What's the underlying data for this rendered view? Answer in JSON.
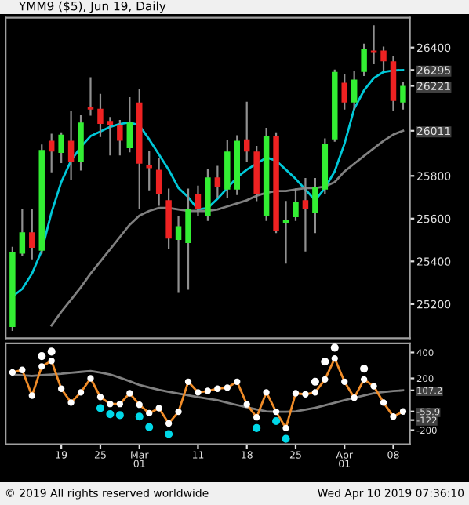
{
  "chart_data": [
    {
      "type": "candlestick",
      "title": "YMM9 ($5), Jun 19, Daily",
      "categories": [
        null,
        null,
        null,
        null,
        null,
        null,
        null,
        null,
        null,
        null,
        null,
        null,
        null,
        null,
        null,
        null,
        null,
        null,
        null,
        null,
        null,
        null,
        null,
        null,
        null,
        null,
        null,
        null,
        null,
        null,
        null,
        null,
        null,
        null,
        null,
        null,
        null,
        null,
        null,
        null,
        null
      ],
      "ohlc": [
        [
          25093,
          25464,
          25079,
          25443
        ],
        [
          25436,
          25643,
          25429,
          25536
        ],
        [
          25536,
          25643,
          25414,
          25464
        ],
        [
          25450,
          25943,
          25440,
          25921
        ],
        [
          25964,
          25993,
          25821,
          25914
        ],
        [
          25907,
          26000,
          25864,
          25993
        ],
        [
          25964,
          26100,
          25786,
          25864
        ],
        [
          25864,
          26079,
          25829,
          26050
        ],
        [
          26120,
          26257,
          26086,
          26110
        ],
        [
          26114,
          26179,
          25986,
          26043
        ],
        [
          26057,
          26071,
          25900,
          26036
        ],
        [
          26036,
          26057,
          25900,
          25964
        ],
        [
          25929,
          26164,
          25914,
          26050
        ],
        [
          26143,
          26200,
          25650,
          25857
        ],
        [
          25850,
          25914,
          25736,
          25836
        ],
        [
          25829,
          25879,
          25664,
          25714
        ],
        [
          25686,
          25736,
          25464,
          25507
        ],
        [
          25500,
          25607,
          25257,
          25564
        ],
        [
          25486,
          25736,
          25271,
          25643
        ],
        [
          25714,
          25750,
          25614,
          25643
        ],
        [
          25614,
          25829,
          25593,
          25793
        ],
        [
          25793,
          25843,
          25700,
          25750
        ],
        [
          25736,
          25964,
          25700,
          25914
        ],
        [
          25736,
          25986,
          25714,
          25964
        ],
        [
          25971,
          26143,
          25871,
          25914
        ],
        [
          25914,
          25936,
          25686,
          25714
        ],
        [
          25614,
          26021,
          25593,
          25986
        ],
        [
          25986,
          26000,
          25536,
          25543
        ],
        [
          25579,
          25679,
          25393,
          25593
        ],
        [
          25607,
          25736,
          25593,
          25679
        ],
        [
          25686,
          25786,
          25450,
          25643
        ],
        [
          25629,
          25786,
          25536,
          25750
        ],
        [
          25736,
          25971,
          25721,
          25950
        ],
        [
          25971,
          26293,
          25964,
          26286
        ],
        [
          26236,
          26271,
          26114,
          26143
        ],
        [
          26143,
          26286,
          26114,
          26250
        ],
        [
          26286,
          26414,
          26271,
          26393
        ],
        [
          26386,
          26500,
          26329,
          26379
        ],
        [
          26386,
          26400,
          26293,
          26336
        ],
        [
          26336,
          26357,
          26107,
          26150
        ],
        [
          26143,
          26236,
          26114,
          26221
        ]
      ],
      "series": [
        {
          "type": "line",
          "color": "#00c8d8",
          "values": [
            25236,
            25271,
            25343,
            25450,
            25629,
            25771,
            25871,
            25936,
            25986,
            26007,
            26029,
            26043,
            26050,
            26036,
            25971,
            25900,
            25829,
            25743,
            25700,
            25643,
            25650,
            25693,
            25743,
            25793,
            25829,
            25857,
            25886,
            25871,
            25829,
            25786,
            25736,
            25686,
            25743,
            25821,
            25950,
            26114,
            26200,
            26257,
            26286,
            26293,
            26295
          ]
        },
        {
          "type": "line",
          "color": "#808080",
          "values": [
            null,
            null,
            null,
            null,
            25100,
            25164,
            25221,
            25279,
            25343,
            25400,
            25457,
            25514,
            25571,
            25614,
            25636,
            25650,
            25650,
            25643,
            25636,
            25636,
            25636,
            25643,
            25657,
            25671,
            25686,
            25707,
            25721,
            25729,
            25729,
            25736,
            25743,
            25743,
            25750,
            25771,
            25821,
            25857,
            25893,
            25929,
            25964,
            25993,
            26011
          ]
        }
      ],
      "ylim": [
        25040,
        26540
      ],
      "yticks": [
        25200,
        25400,
        25600,
        25800,
        26400,
        {
          "value": 26295,
          "label": "26295"
        },
        {
          "value": 26221,
          "label": "26221"
        },
        {
          "value": 26011,
          "label": "26011"
        }
      ],
      "tick_labels": "y"
    },
    {
      "type": "line",
      "categories": [
        null,
        null,
        null,
        null,
        null,
        "19",
        null,
        null,
        null,
        "25",
        null,
        null,
        null,
        "Mar\n01",
        null,
        null,
        null,
        null,
        null,
        "11",
        null,
        null,
        null,
        null,
        "18",
        null,
        null,
        null,
        null,
        "25",
        null,
        null,
        null,
        null,
        "Apr\n01",
        null,
        null,
        null,
        null,
        "08",
        null
      ],
      "series": [
        {
          "type": "line",
          "color": "#808080",
          "values": [
            228,
            224,
            219,
            225,
            230,
            235,
            243,
            250,
            257,
            245,
            230,
            205,
            178,
            149,
            130,
            112,
            96,
            82,
            69,
            55,
            43,
            31,
            12,
            -6,
            -23,
            -40,
            -55,
            -58,
            -58,
            -55,
            -42,
            -28,
            -8,
            12,
            31,
            50,
            68,
            85,
            95,
            102,
            107.2
          ]
        },
        {
          "type": "line",
          "color": "#f08c28",
          "marker": "circle",
          "values": [
            246,
            265,
            67,
            292,
            335,
            120,
            13,
            92,
            200,
            56,
            2,
            2,
            85,
            -4,
            -69,
            -30,
            -148,
            -58,
            174,
            92,
            103,
            120,
            128,
            174,
            -1,
            -101,
            92,
            -58,
            -184,
            85,
            77,
            92,
            192,
            354,
            174,
            50,
            192,
            139,
            13,
            -95,
            -55.9
          ]
        },
        {
          "type": "scatter",
          "color": "#ffffff",
          "values": [
            null,
            null,
            null,
            372,
            407,
            null,
            null,
            null,
            null,
            null,
            null,
            null,
            null,
            null,
            null,
            null,
            null,
            null,
            null,
            null,
            null,
            null,
            null,
            null,
            null,
            null,
            null,
            null,
            null,
            null,
            null,
            174,
            329,
            437,
            null,
            null,
            275,
            null,
            null,
            null,
            null
          ]
        },
        {
          "type": "scatter",
          "color": "#00d8e8",
          "values": [
            null,
            null,
            null,
            null,
            null,
            null,
            null,
            null,
            null,
            -30,
            -76,
            -84,
            null,
            -95,
            -176,
            null,
            -230,
            null,
            null,
            null,
            null,
            null,
            null,
            null,
            null,
            -184,
            null,
            -130,
            -267,
            null,
            null,
            null,
            null,
            null,
            null,
            null,
            null,
            null,
            null,
            null,
            null
          ]
        }
      ],
      "ylim": [
        -310,
        470
      ],
      "yticks": [
        -200,
        200,
        400,
        {
          "value": 107.2,
          "label": "107.2"
        },
        {
          "value": -55.9,
          "label": "-55.9"
        },
        {
          "value": -122,
          "label": "-122"
        }
      ],
      "annotations": [
        "© 2019 All rights reserved worldwide",
        "Wed Apr 10 2019 07:36:10"
      ]
    }
  ]
}
